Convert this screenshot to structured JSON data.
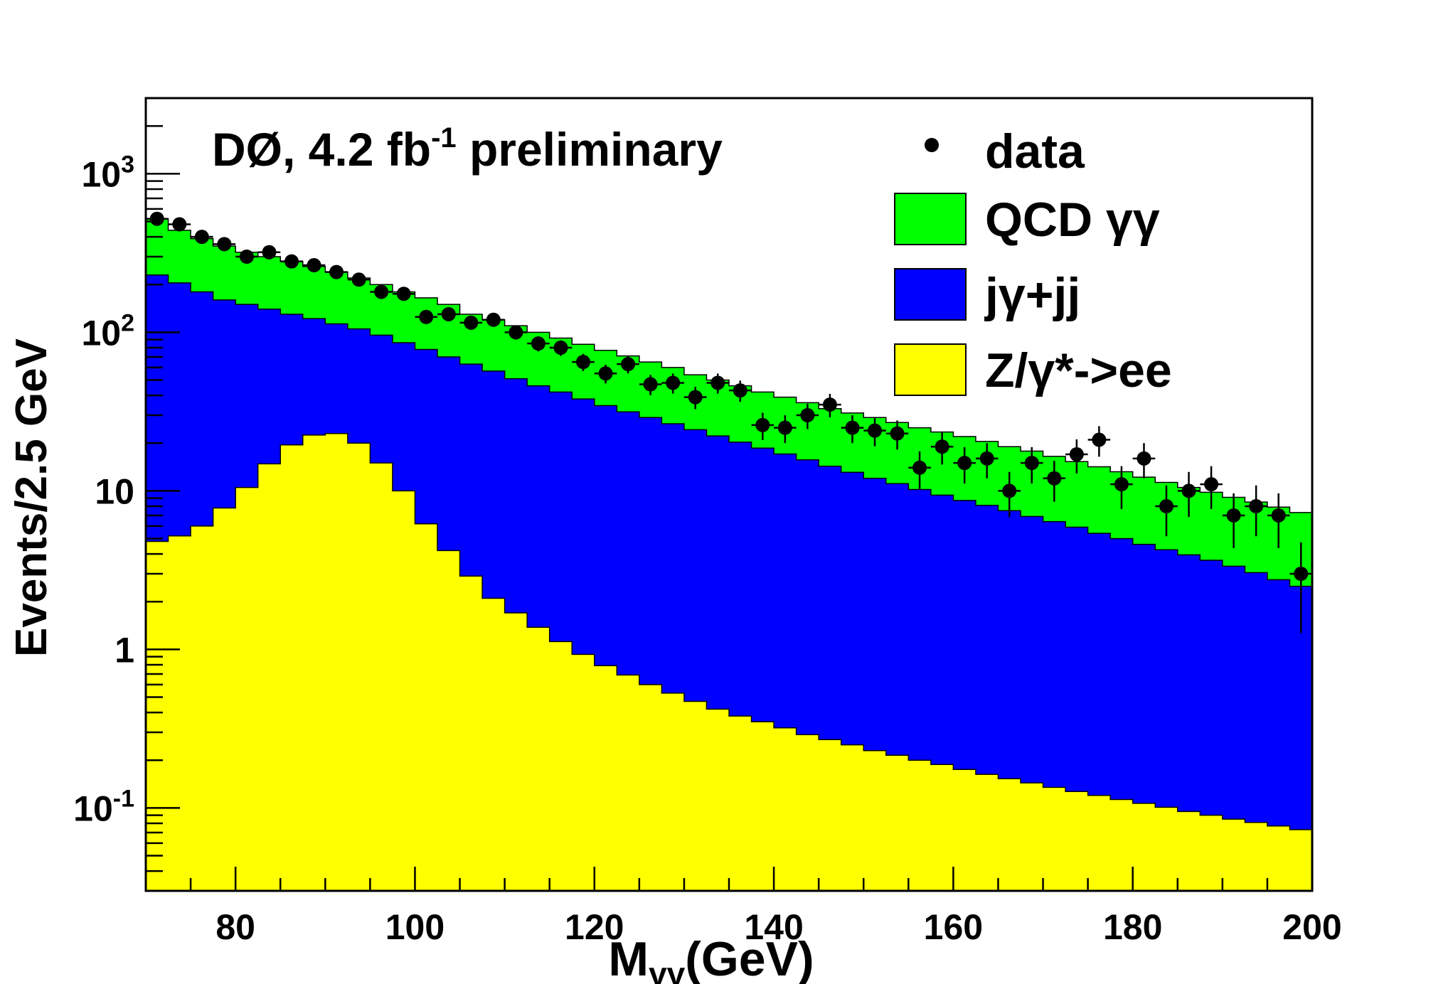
{
  "chart_data": {
    "type": "histogram-stacked",
    "scale": "log-y",
    "title": "DØ, 4.2 fb",
    "title_sup": "-1",
    "title_suffix": " preliminary",
    "xlabel_main": "M",
    "xlabel_sub": "γγ",
    "xlabel_unit": "(GeV)",
    "ylabel": "Events/2.5 GeV",
    "xlim": [
      70,
      200
    ],
    "ylim": [
      0.03,
      3000
    ],
    "bin_width": 2.5,
    "x_ticks": [
      {
        "value": 80,
        "label": "80"
      },
      {
        "value": 100,
        "label": "100"
      },
      {
        "value": 120,
        "label": "120"
      },
      {
        "value": 140,
        "label": "140"
      },
      {
        "value": 160,
        "label": "160"
      },
      {
        "value": 180,
        "label": "180"
      },
      {
        "value": 200,
        "label": "200"
      }
    ],
    "y_ticks": [
      {
        "value": 0.1,
        "base": "10",
        "exp": "-1"
      },
      {
        "value": 1,
        "base": "1",
        "exp": ""
      },
      {
        "value": 10,
        "base": "10",
        "exp": ""
      },
      {
        "value": 100,
        "base": "10",
        "exp": "2"
      },
      {
        "value": 1000,
        "base": "10",
        "exp": "3"
      }
    ],
    "legend_position": "top-right",
    "legend": [
      {
        "label": "data",
        "style": "marker",
        "color": "#000000"
      },
      {
        "label": "QCD γγ",
        "style": "fill",
        "color": "#00ff00"
      },
      {
        "label": "jγ+jj",
        "style": "fill",
        "color": "#0000ff"
      },
      {
        "label": "Z/γ*->ee",
        "style": "fill",
        "color": "#ffff00"
      }
    ],
    "bin_edges_start": 70,
    "stack_totals": {
      "zee": [
        4.8,
        5.2,
        6.0,
        7.8,
        10.5,
        14.8,
        19.5,
        22.5,
        23.0,
        20.0,
        15.0,
        10.0,
        6.2,
        4.2,
        2.9,
        2.1,
        1.7,
        1.38,
        1.12,
        0.93,
        0.79,
        0.69,
        0.6,
        0.53,
        0.47,
        0.42,
        0.38,
        0.35,
        0.32,
        0.29,
        0.27,
        0.25,
        0.23,
        0.215,
        0.2,
        0.188,
        0.175,
        0.163,
        0.153,
        0.144,
        0.135,
        0.127,
        0.12,
        0.113,
        0.107,
        0.101,
        0.095,
        0.09,
        0.085,
        0.081,
        0.077,
        0.073
      ],
      "jg_jj": [
        230,
        205,
        180,
        160,
        150,
        140,
        130,
        122,
        113,
        105,
        96,
        86,
        78,
        70,
        63,
        57,
        51,
        46,
        42,
        38,
        34.5,
        31.5,
        29,
        26.5,
        24.3,
        22.2,
        20.3,
        18.6,
        17.1,
        15.7,
        14.3,
        13.1,
        12,
        11.1,
        10.2,
        9.4,
        8.7,
        8.1,
        7.5,
        6.9,
        6.4,
        5.9,
        5.4,
        5.0,
        4.6,
        4.25,
        3.95,
        3.65,
        3.35,
        3.05,
        2.75,
        2.5
      ],
      "qcd": [
        520,
        440,
        390,
        350,
        320,
        300,
        280,
        260,
        240,
        220,
        200,
        180,
        165,
        150,
        130,
        120,
        110,
        100,
        92,
        84,
        77,
        71,
        65,
        60,
        54,
        50,
        46,
        42,
        39,
        36,
        33,
        31,
        29,
        27,
        25,
        23.5,
        22,
        20.5,
        19,
        17.8,
        16.5,
        15.3,
        14.2,
        13.2,
        12.2,
        11.3,
        10.5,
        9.8,
        9.1,
        8.5,
        7.9,
        7.3
      ]
    },
    "data_points": {
      "x": [
        71.25,
        73.75,
        76.25,
        78.75,
        81.25,
        83.75,
        86.25,
        88.75,
        91.25,
        93.75,
        96.25,
        98.75,
        101.25,
        103.75,
        106.25,
        108.75,
        111.25,
        113.75,
        116.25,
        118.75,
        121.25,
        123.75,
        126.25,
        128.75,
        131.25,
        133.75,
        136.25,
        138.75,
        141.25,
        143.75,
        146.25,
        148.75,
        151.25,
        153.75,
        156.25,
        158.75,
        161.25,
        163.75,
        166.25,
        168.75,
        171.25,
        173.75,
        176.25,
        178.75,
        181.25,
        183.75,
        186.25,
        188.75,
        191.25,
        193.75,
        196.25,
        198.75
      ],
      "y": [
        520,
        480,
        400,
        360,
        300,
        320,
        280,
        265,
        240,
        215,
        180,
        175,
        125,
        130,
        115,
        120,
        100,
        85,
        80,
        65,
        55,
        63,
        47,
        48,
        39,
        48,
        43,
        26,
        25,
        30,
        35,
        25,
        24,
        23,
        14,
        19,
        15,
        16,
        10,
        15,
        12,
        17,
        21,
        11,
        16,
        8,
        10,
        11,
        7,
        8,
        7,
        3
      ]
    }
  }
}
